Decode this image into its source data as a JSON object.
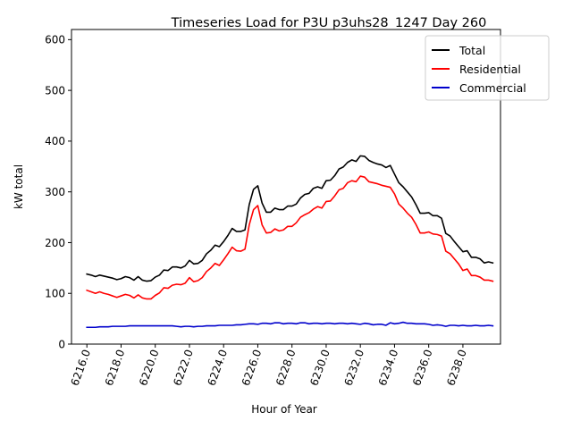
{
  "chart_data": {
    "type": "line",
    "title": "Timeseries Load for P3U p3uhs28_1247  Day 260",
    "xlabel": "Hour of Year",
    "ylabel": "kW total",
    "xlim": [
      6215.1,
      6240.2
    ],
    "ylim": [
      0,
      620
    ],
    "xticks": [
      6216,
      6218,
      6220,
      6222,
      6224,
      6226,
      6228,
      6230,
      6232,
      6234,
      6236,
      6238
    ],
    "xtick_labels": [
      "6216.0",
      "6218.0",
      "6220.0",
      "6222.0",
      "6224.0",
      "6226.0",
      "6228.0",
      "6230.0",
      "6232.0",
      "6234.0",
      "6236.0",
      "6238.0"
    ],
    "yticks": [
      0,
      100,
      200,
      300,
      400,
      500,
      600
    ],
    "ytick_labels": [
      "0",
      "100",
      "200",
      "300",
      "400",
      "500",
      "600"
    ],
    "legend_position": "top-right",
    "x": [
      6216.0,
      6216.25,
      6216.5,
      6216.75,
      6217.0,
      6217.25,
      6217.5,
      6217.75,
      6218.0,
      6218.25,
      6218.5,
      6218.75,
      6219.0,
      6219.25,
      6219.5,
      6219.75,
      6220.0,
      6220.25,
      6220.5,
      6220.75,
      6221.0,
      6221.25,
      6221.5,
      6221.75,
      6222.0,
      6222.25,
      6222.5,
      6222.75,
      6223.0,
      6223.25,
      6223.5,
      6223.75,
      6224.0,
      6224.25,
      6224.5,
      6224.75,
      6225.0,
      6225.25,
      6225.5,
      6225.75,
      6226.0,
      6226.25,
      6226.5,
      6226.75,
      6227.0,
      6227.25,
      6227.5,
      6227.75,
      6228.0,
      6228.25,
      6228.5,
      6228.75,
      6229.0,
      6229.25,
      6229.5,
      6229.75,
      6230.0,
      6230.25,
      6230.5,
      6230.75,
      6231.0,
      6231.25,
      6231.5,
      6231.75,
      6232.0,
      6232.25,
      6232.5,
      6232.75,
      6233.0,
      6233.25,
      6233.5,
      6233.75,
      6234.0,
      6234.25,
      6234.5,
      6234.75,
      6235.0,
      6235.25,
      6235.5,
      6235.75,
      6236.0,
      6236.25,
      6236.5,
      6236.75,
      6237.0,
      6237.25,
      6237.5,
      6237.75,
      6238.0,
      6238.25,
      6238.5,
      6238.75,
      6239.0,
      6239.25,
      6239.5,
      6239.75
    ],
    "series": [
      {
        "name": "Total",
        "color": "#000000",
        "values": [
          138,
          136,
          133,
          136,
          134,
          132,
          130,
          127,
          129,
          133,
          131,
          126,
          133,
          126,
          124,
          125,
          132,
          136,
          146,
          145,
          152,
          152,
          150,
          154,
          165,
          158,
          159,
          165,
          178,
          185,
          195,
          192,
          202,
          214,
          228,
          222,
          222,
          225,
          275,
          305,
          312,
          278,
          260,
          260,
          268,
          265,
          265,
          272,
          272,
          276,
          288,
          295,
          297,
          307,
          310,
          307,
          322,
          323,
          332,
          345,
          349,
          358,
          363,
          360,
          371,
          370,
          362,
          358,
          355,
          353,
          348,
          352,
          335,
          318,
          310,
          300,
          290,
          275,
          258,
          258,
          259,
          253,
          253,
          248,
          218,
          213,
          202,
          192,
          182,
          184,
          171,
          171,
          168,
          160,
          162,
          160
        ]
      },
      {
        "name": "Residential",
        "color": "#ff0000",
        "values": [
          106,
          103,
          100,
          103,
          100,
          98,
          95,
          92,
          95,
          98,
          96,
          91,
          97,
          91,
          89,
          89,
          96,
          101,
          111,
          110,
          116,
          118,
          117,
          120,
          131,
          123,
          125,
          131,
          143,
          150,
          159,
          155,
          166,
          178,
          191,
          184,
          183,
          187,
          235,
          265,
          273,
          235,
          219,
          220,
          227,
          223,
          225,
          232,
          232,
          239,
          250,
          255,
          259,
          266,
          271,
          268,
          281,
          282,
          292,
          304,
          307,
          318,
          322,
          320,
          331,
          329,
          320,
          318,
          316,
          313,
          311,
          309,
          296,
          276,
          268,
          258,
          250,
          236,
          219,
          219,
          221,
          217,
          216,
          213,
          183,
          178,
          168,
          158,
          145,
          148,
          135,
          135,
          132,
          126,
          126,
          124
        ]
      },
      {
        "name": "Commercial",
        "color": "#0000cc",
        "values": [
          33,
          33,
          33,
          34,
          34,
          34,
          35,
          35,
          35,
          35,
          36,
          36,
          36,
          36,
          36,
          36,
          36,
          36,
          36,
          36,
          36,
          35,
          34,
          35,
          35,
          34,
          35,
          35,
          36,
          36,
          36,
          37,
          37,
          37,
          37,
          38,
          38,
          39,
          40,
          40,
          39,
          41,
          41,
          40,
          42,
          42,
          40,
          41,
          41,
          40,
          42,
          42,
          40,
          41,
          41,
          40,
          41,
          41,
          40,
          41,
          41,
          40,
          41,
          40,
          39,
          41,
          40,
          38,
          39,
          39,
          37,
          42,
          40,
          41,
          43,
          41,
          41,
          40,
          40,
          40,
          39,
          37,
          38,
          37,
          35,
          37,
          37,
          36,
          37,
          36,
          36,
          37,
          36,
          36,
          37,
          36
        ]
      }
    ]
  }
}
